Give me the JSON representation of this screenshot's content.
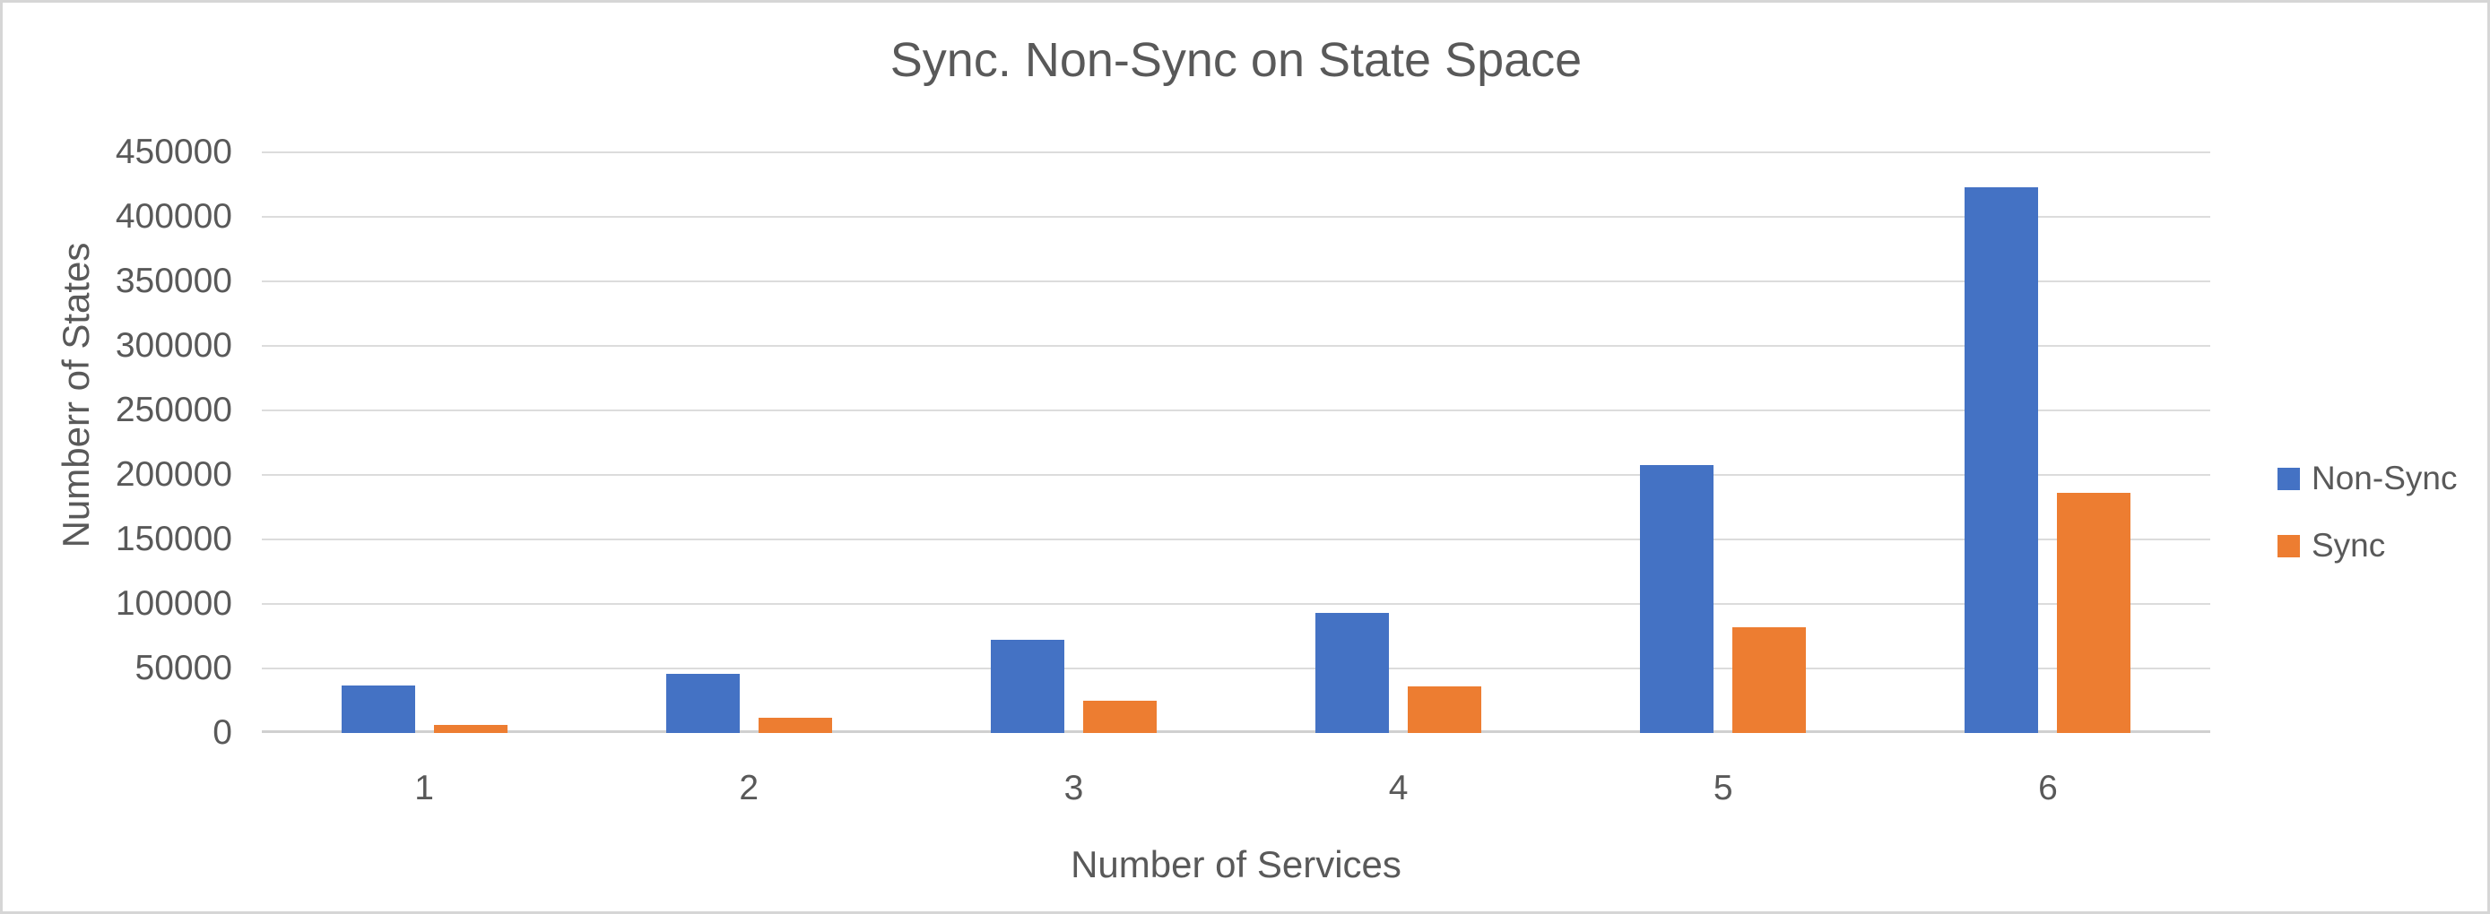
{
  "chart_data": {
    "type": "bar",
    "title": "Sync. Non-Sync on State Space",
    "xlabel": "Number of Services",
    "ylabel": "Numberr of States",
    "categories": [
      "1",
      "2",
      "3",
      "4",
      "5",
      "6"
    ],
    "series": [
      {
        "name": "Non-Sync",
        "color": "#4472C4",
        "values": [
          37000,
          46000,
          72000,
          93000,
          208000,
          423000
        ]
      },
      {
        "name": "Sync",
        "color": "#ED7D31",
        "values": [
          6000,
          12000,
          25000,
          36000,
          82000,
          186000
        ]
      }
    ],
    "ylim": [
      0,
      450000
    ],
    "ytick_step": 50000,
    "yticks": [
      "450000",
      "400000",
      "350000",
      "300000",
      "250000",
      "200000",
      "150000",
      "100000",
      "50000",
      "0"
    ],
    "grid": true,
    "legend_position": "right",
    "legend": [
      "Non-Sync",
      "Sync"
    ]
  },
  "colors": {
    "bar_blue": "#4472C4",
    "bar_orange": "#ED7D31",
    "text_gray": "#595959",
    "gridline": "#DCDCDC",
    "axis_line": "#D0D0D0",
    "frame_border": "#D6D6D6",
    "background": "#FFFFFF"
  }
}
